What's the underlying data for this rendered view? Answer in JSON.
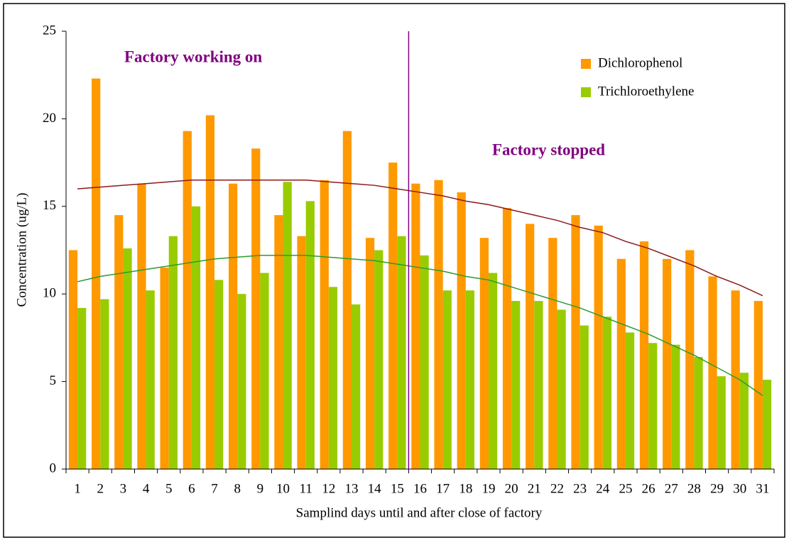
{
  "chart_data": {
    "type": "bar",
    "x_label": "Samplind days until and after close of factory",
    "y_label": "Concentration (ug/L)",
    "categories": [
      "1",
      "2",
      "3",
      "4",
      "5",
      "6",
      "7",
      "8",
      "9",
      "10",
      "11",
      "12",
      "13",
      "14",
      "15",
      "16",
      "17",
      "18",
      "19",
      "20",
      "21",
      "22",
      "23",
      "24",
      "25",
      "26",
      "27",
      "28",
      "29",
      "30",
      "31"
    ],
    "series": [
      {
        "name": "Dichlorophenol",
        "color": "#ff9900",
        "values": [
          12.5,
          22.3,
          14.5,
          16.3,
          11.5,
          19.3,
          20.2,
          16.3,
          18.3,
          14.5,
          13.3,
          16.5,
          19.3,
          13.2,
          17.5,
          16.3,
          16.5,
          15.8,
          13.2,
          14.9,
          14.0,
          13.2,
          14.5,
          13.9,
          12.0,
          13.0,
          12.0,
          12.5,
          11.0,
          10.2,
          9.6
        ]
      },
      {
        "name": "Trichloroethylene",
        "color": "#99cc00",
        "values": [
          9.2,
          9.7,
          12.6,
          10.2,
          13.3,
          15.0,
          10.8,
          10.0,
          11.2,
          16.4,
          15.3,
          10.4,
          9.4,
          12.5,
          13.3,
          12.2,
          10.2,
          10.2,
          11.2,
          9.6,
          9.6,
          9.1,
          8.2,
          8.7,
          7.8,
          7.2,
          7.1,
          6.4,
          5.3,
          5.5,
          5.1
        ]
      }
    ],
    "trendlines": [
      {
        "color": "#8b1a1a",
        "values": [
          16.0,
          16.1,
          16.2,
          16.3,
          16.4,
          16.5,
          16.5,
          16.5,
          16.5,
          16.5,
          16.5,
          16.4,
          16.3,
          16.2,
          16.0,
          15.8,
          15.6,
          15.3,
          15.1,
          14.8,
          14.5,
          14.2,
          13.8,
          13.5,
          13.0,
          12.6,
          12.1,
          11.6,
          11.0,
          10.5,
          9.9
        ]
      },
      {
        "color": "#2e9a2e",
        "values": [
          10.7,
          11.0,
          11.2,
          11.4,
          11.6,
          11.8,
          12.0,
          12.1,
          12.2,
          12.2,
          12.2,
          12.1,
          12.0,
          11.9,
          11.7,
          11.5,
          11.3,
          11.0,
          10.8,
          10.4,
          10.0,
          9.6,
          9.2,
          8.7,
          8.2,
          7.7,
          7.1,
          6.5,
          5.8,
          5.1,
          4.2
        ]
      }
    ],
    "annotations": [
      "Factory working on",
      "Factory stopped"
    ],
    "ylim": [
      0,
      25
    ],
    "yticks": [
      0,
      5,
      10,
      15,
      20,
      25
    ],
    "legend": "top-right",
    "grid": false
  }
}
